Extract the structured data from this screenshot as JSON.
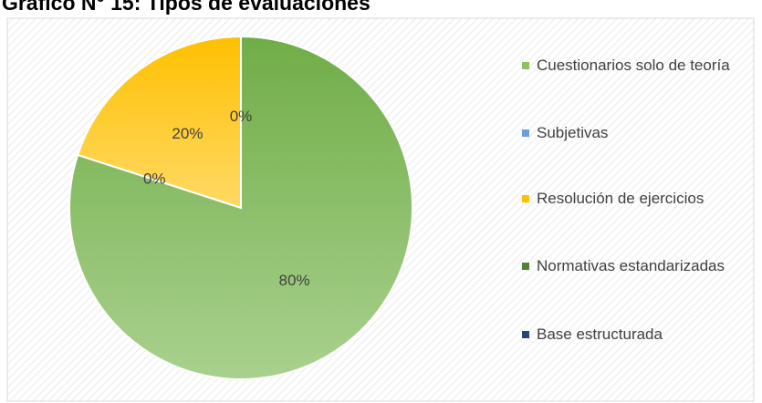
{
  "chart_data": {
    "type": "pie",
    "title": "Gráfico N° 15: Tipos de evaluaciones",
    "categories": [
      "Cuestionarios solo de teoría",
      "Subjetivas",
      "Resolución de ejercicios",
      "Normativas estandarizadas",
      "Base estructurada"
    ],
    "values": [
      80,
      0,
      20,
      0,
      0
    ],
    "value_labels": [
      "80%",
      "0%",
      "20%",
      "0%",
      null
    ],
    "colors": [
      "#8fc163",
      "#6f9fd8",
      "#ffc000",
      "#548235",
      "#264478"
    ],
    "legend": "right"
  }
}
